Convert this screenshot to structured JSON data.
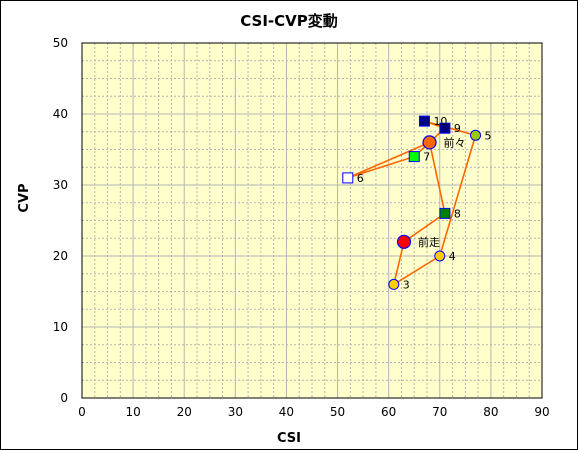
{
  "chart_data": {
    "type": "scatter",
    "title": "CSI-CVP変動",
    "xlabel": "CSI",
    "ylabel": "CVP",
    "xlim": [
      0,
      90
    ],
    "ylim": [
      0,
      50
    ],
    "xticks": [
      "0",
      "10",
      "20",
      "30",
      "40",
      "50",
      "60",
      "70",
      "80",
      "90"
    ],
    "yticks": [
      "0",
      "10",
      "20",
      "30",
      "40",
      "50"
    ],
    "grid": true,
    "colors": {
      "plot_background": "#ffffcc",
      "grid": "#b4b4b4",
      "line": "#ff6600",
      "navy_square": "#000080",
      "green_square": "#00ff00",
      "white_square": "#ffffff",
      "dark_green_square": "#008000",
      "gold_circle": "#ffcc00",
      "lime_circle": "#99cc00",
      "red_circle": "#ff0000",
      "orange_circle": "#ff6600"
    },
    "path_order": [
      "10",
      "9",
      "7",
      "6",
      "前々",
      "8",
      "前走",
      "3",
      "4",
      "5",
      "10"
    ],
    "points": [
      {
        "label": "10",
        "x": 67,
        "y": 39,
        "marker": "square",
        "fill": "#000080"
      },
      {
        "label": "9",
        "x": 71,
        "y": 38,
        "marker": "square",
        "fill": "#000080"
      },
      {
        "label": "前々",
        "x": 68,
        "y": 36,
        "marker": "circle-large",
        "fill": "#ff6600"
      },
      {
        "label": "5",
        "x": 77,
        "y": 37,
        "marker": "circle",
        "fill": "#99cc00"
      },
      {
        "label": "7",
        "x": 65,
        "y": 34,
        "marker": "square",
        "fill": "#00ff00"
      },
      {
        "label": "6",
        "x": 52,
        "y": 31,
        "marker": "square",
        "fill": "#ffffff"
      },
      {
        "label": "8",
        "x": 71,
        "y": 26,
        "marker": "square",
        "fill": "#008000"
      },
      {
        "label": "前走",
        "x": 63,
        "y": 22,
        "marker": "circle-large",
        "fill": "#ff0000"
      },
      {
        "label": "4",
        "x": 70,
        "y": 20,
        "marker": "circle",
        "fill": "#ffcc00"
      },
      {
        "label": "3",
        "x": 61,
        "y": 16,
        "marker": "circle",
        "fill": "#ffcc00"
      }
    ]
  }
}
